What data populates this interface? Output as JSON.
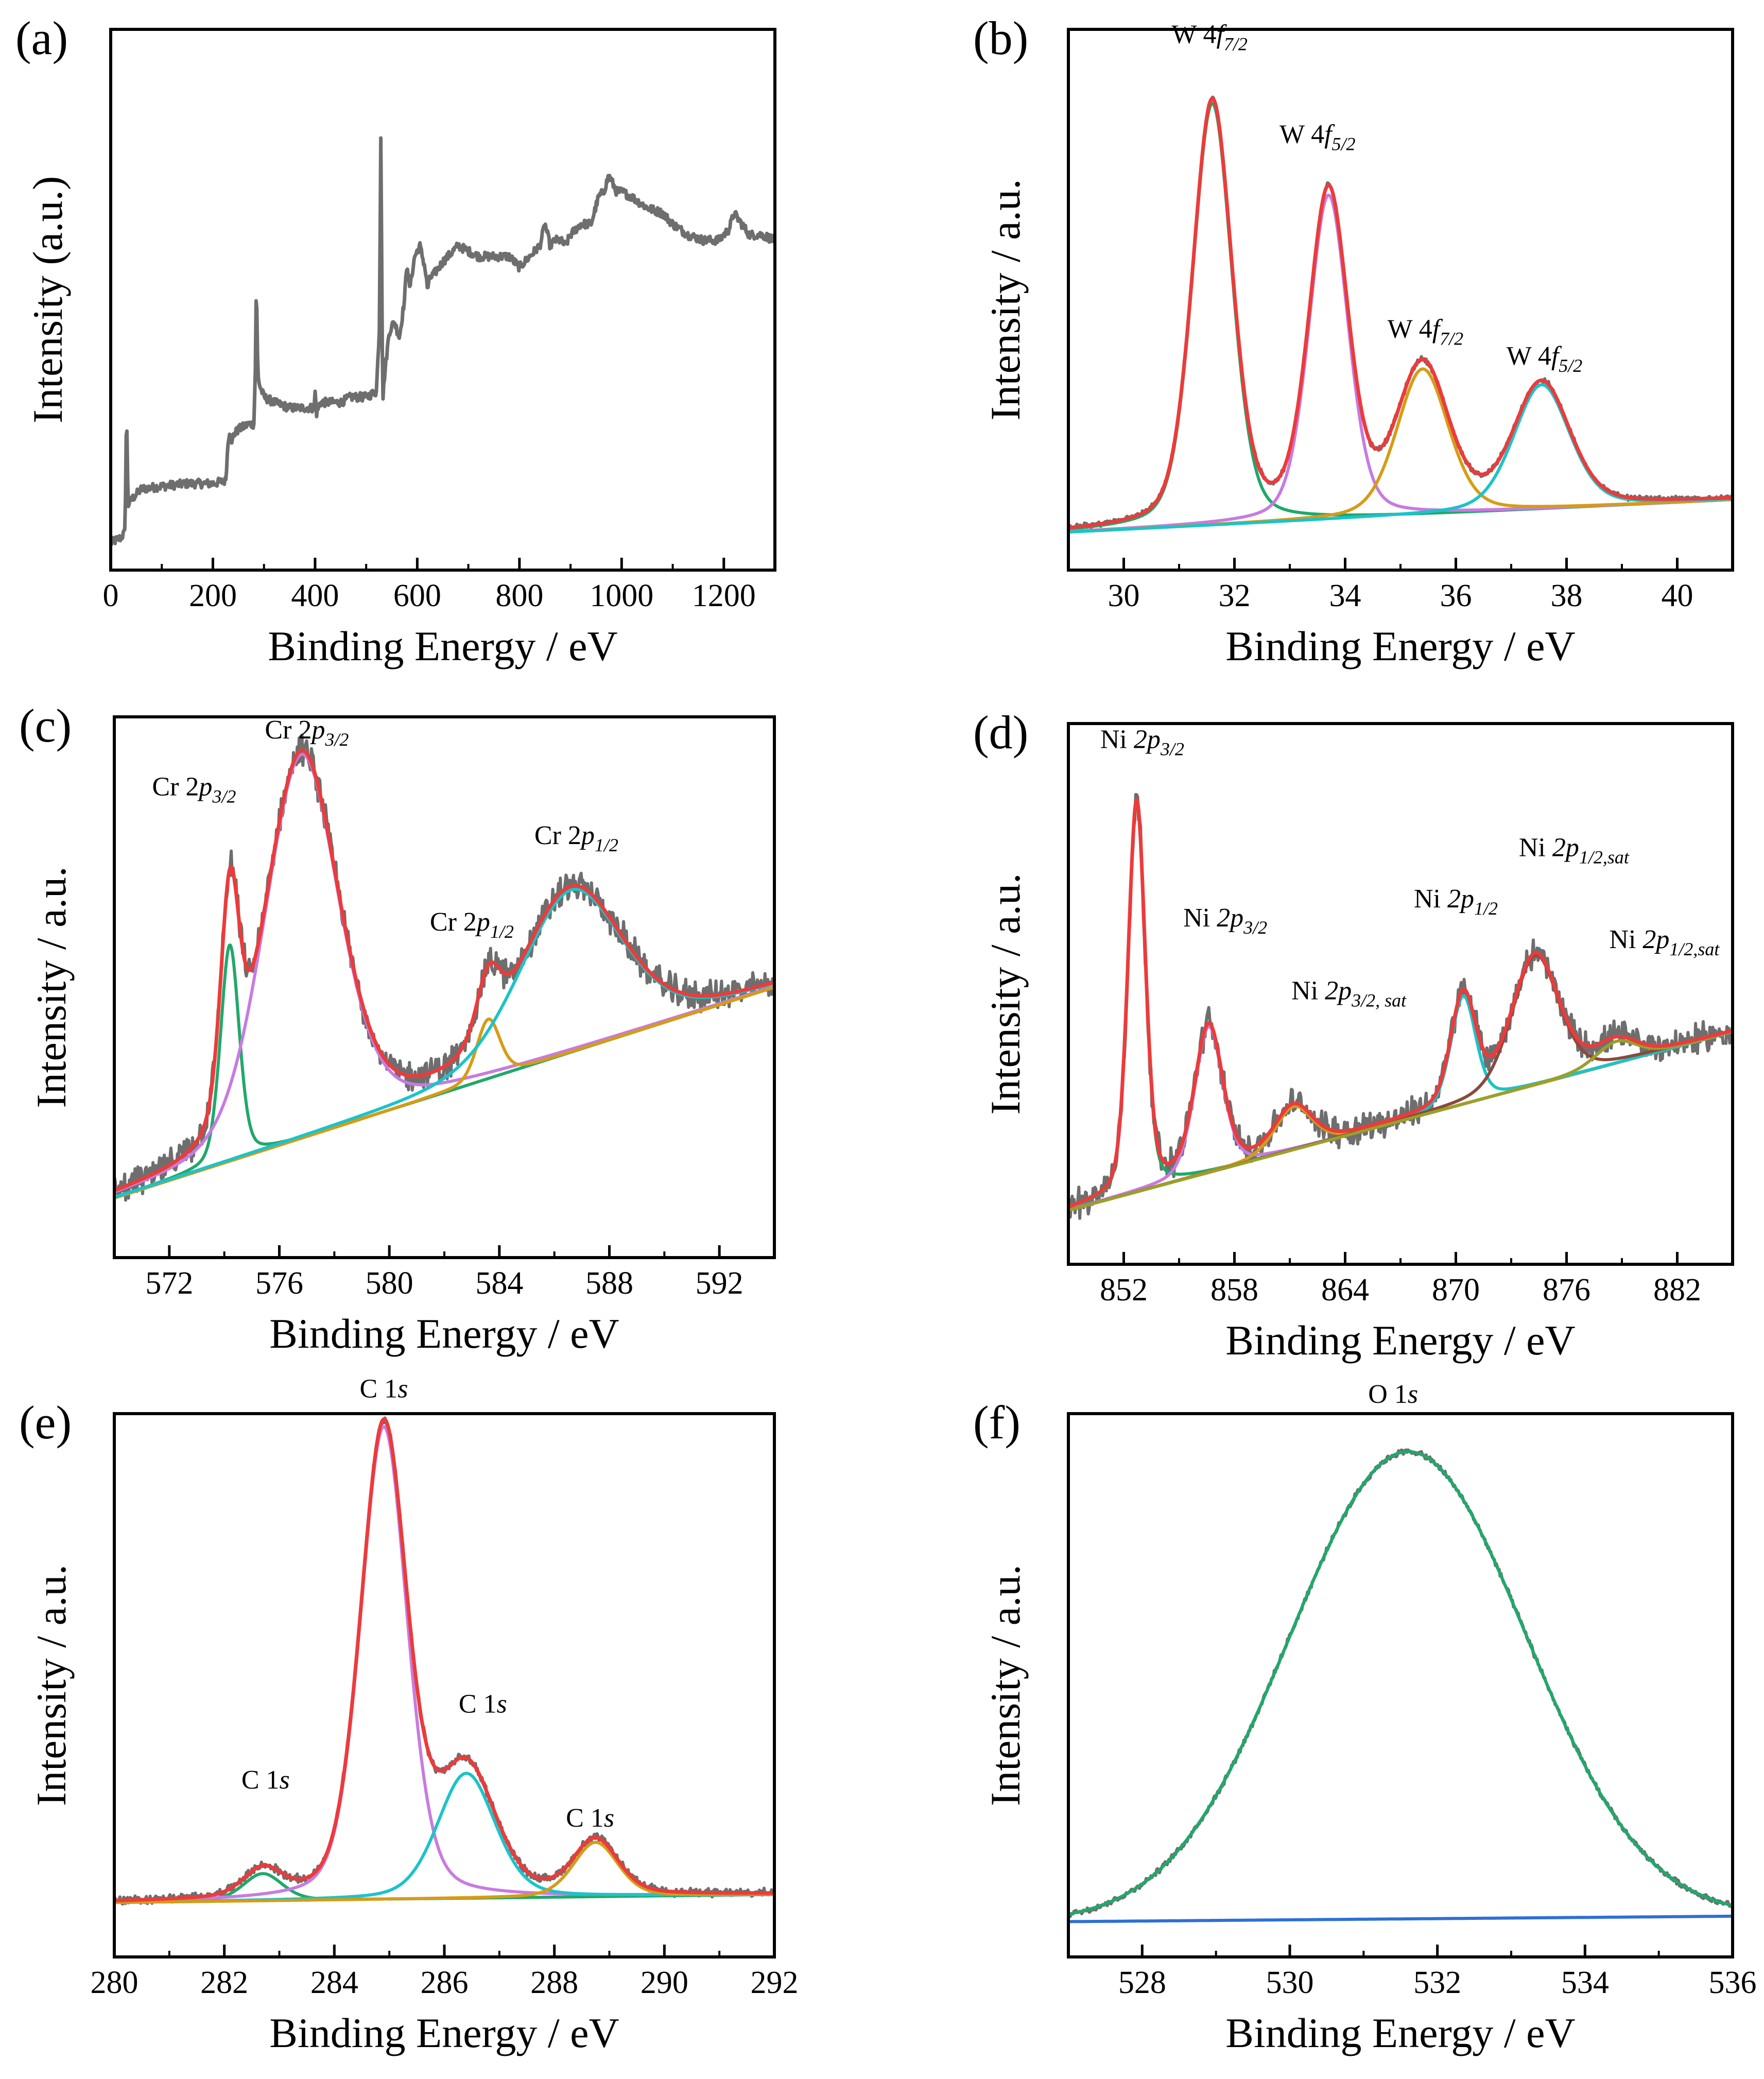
{
  "colors": {
    "raw": "#6e6e6e",
    "envelope": "#ec3b3b",
    "green": "#21a86b",
    "violet": "#c77be0",
    "orange": "#d69c16",
    "cyan": "#1cc3c9",
    "brown": "#8b4a3c",
    "olive": "#9aa02a",
    "blue": "#2d6fd6",
    "axis": "#000000"
  },
  "chart_data": [
    {
      "panel": "(a)",
      "type": "line",
      "title": "",
      "xlabel": "Binding Energy / eV",
      "ylabel": "Intensity (a.u.)",
      "xlim": [
        0,
        1300
      ],
      "ylim": [
        0,
        1
      ],
      "xticks": [
        0,
        200,
        400,
        600,
        800,
        1000,
        1200
      ],
      "xticklabels": [
        "0",
        "200",
        "400",
        "600",
        "800",
        "1000",
        "1200"
      ],
      "minor_step": 100,
      "series": [
        {
          "name": "survey",
          "color_key": "raw",
          "width": 7,
          "noise": 0.008,
          "x": [
            0,
            20,
            28,
            31,
            34,
            40,
            60,
            100,
            150,
            200,
            225,
            230,
            233,
            237,
            240,
            250,
            270,
            280,
            283,
            285,
            288,
            292,
            300,
            320,
            350,
            380,
            398,
            400,
            403,
            410,
            430,
            450,
            470,
            500,
            520,
            526,
            529,
            531,
            533,
            536,
            545,
            555,
            565,
            575,
            580,
            585,
            595,
            605,
            615,
            620,
            625,
            635,
            650,
            680,
            700,
            720,
            740,
            760,
            780,
            800,
            820,
            840,
            850,
            860,
            870,
            880,
            890,
            900,
            920,
            940,
            955,
            965,
            975,
            980,
            990,
            1000,
            1020,
            1050,
            1080,
            1100,
            1130,
            1160,
            1190,
            1210,
            1220,
            1235,
            1250,
            1275,
            1300
          ],
          "y": [
            0.05,
            0.06,
            0.07,
            0.3,
            0.12,
            0.13,
            0.15,
            0.155,
            0.16,
            0.16,
            0.165,
            0.24,
            0.26,
            0.23,
            0.25,
            0.26,
            0.27,
            0.27,
            0.36,
            0.54,
            0.36,
            0.34,
            0.32,
            0.31,
            0.3,
            0.3,
            0.3,
            0.33,
            0.29,
            0.31,
            0.31,
            0.31,
            0.32,
            0.32,
            0.33,
            0.45,
            0.85,
            0.45,
            0.32,
            0.36,
            0.44,
            0.46,
            0.43,
            0.5,
            0.57,
            0.52,
            0.58,
            0.6,
            0.56,
            0.52,
            0.54,
            0.55,
            0.57,
            0.6,
            0.59,
            0.58,
            0.58,
            0.58,
            0.58,
            0.56,
            0.58,
            0.6,
            0.64,
            0.6,
            0.61,
            0.61,
            0.6,
            0.62,
            0.64,
            0.64,
            0.69,
            0.7,
            0.73,
            0.72,
            0.7,
            0.7,
            0.69,
            0.67,
            0.66,
            0.64,
            0.62,
            0.61,
            0.61,
            0.63,
            0.66,
            0.64,
            0.62,
            0.62,
            0.61
          ]
        }
      ],
      "annotations": []
    },
    {
      "panel": "(b)",
      "type": "line",
      "title": "",
      "xlabel": "Binding Energy / eV",
      "ylabel": "Intensity / a.u.",
      "xlim": [
        29,
        41
      ],
      "ylim": [
        0,
        1
      ],
      "xticks": [
        30,
        32,
        34,
        36,
        38,
        40
      ],
      "xticklabels": [
        "30",
        "32",
        "34",
        "36",
        "38",
        "40"
      ],
      "minor_step": 1,
      "baseline": {
        "start": [
          29,
          0.07
        ],
        "end": [
          41,
          0.13
        ]
      },
      "peaks": [
        {
          "name": "W 4f7/2",
          "center": 31.6,
          "height": 0.78,
          "width": 0.42,
          "color_key": "green"
        },
        {
          "name": "W 4f5/2",
          "center": 33.7,
          "height": 0.6,
          "width": 0.42,
          "color_key": "violet"
        },
        {
          "name": "W 4f7/2",
          "center": 35.4,
          "height": 0.27,
          "width": 0.55,
          "color_key": "orange"
        },
        {
          "name": "W 4f5/2",
          "center": 37.55,
          "height": 0.23,
          "width": 0.6,
          "color_key": "cyan"
        }
      ],
      "noise": 0.004,
      "annotations": [
        {
          "x": 31.55,
          "y": 0.975,
          "parts": [
            [
              "W 4",
              ""
            ],
            [
              "f",
              "it"
            ],
            [
              "7/2",
              "sub"
            ]
          ]
        },
        {
          "x": 33.5,
          "y": 0.79,
          "parts": [
            [
              "W 4",
              ""
            ],
            [
              "f",
              "it"
            ],
            [
              "5/2",
              "sub"
            ]
          ]
        },
        {
          "x": 35.45,
          "y": 0.43,
          "parts": [
            [
              "W 4",
              ""
            ],
            [
              "f",
              "it"
            ],
            [
              "7/2",
              "sub"
            ]
          ]
        },
        {
          "x": 37.6,
          "y": 0.38,
          "parts": [
            [
              "W 4",
              ""
            ],
            [
              "f",
              "it"
            ],
            [
              "5/2",
              "sub"
            ]
          ]
        }
      ]
    },
    {
      "panel": "(c)",
      "type": "line",
      "title": "",
      "xlabel": "Binding Energy / eV",
      "ylabel": "Intensity / a.u.",
      "xlim": [
        570,
        594
      ],
      "ylim": [
        0,
        1
      ],
      "xticks": [
        572,
        576,
        580,
        584,
        588,
        592
      ],
      "xticklabels": [
        "572",
        "576",
        "580",
        "584",
        "588",
        "592"
      ],
      "minor_step": 2,
      "baseline": {
        "start": [
          570,
          0.11
        ],
        "end": [
          594,
          0.5
        ]
      },
      "peaks": [
        {
          "name": "Cr 2p3/2",
          "center": 574.2,
          "height": 0.4,
          "width": 0.4,
          "color_key": "green"
        },
        {
          "name": "Cr 2p3/2",
          "center": 576.8,
          "height": 0.71,
          "width": 1.6,
          "color_key": "violet"
        },
        {
          "name": "Cr 2p1/2",
          "center": 583.6,
          "height": 0.11,
          "width": 0.5,
          "color_key": "orange"
        },
        {
          "name": "Cr 2p1/2",
          "center": 586.6,
          "height": 0.3,
          "width": 2.2,
          "color_key": "cyan"
        }
      ],
      "noise": 0.022,
      "annotations": [
        {
          "x": 572.9,
          "y": 0.855,
          "parts": [
            [
              "Cr 2",
              ""
            ],
            [
              "p",
              "it"
            ],
            [
              "3/2",
              "sub"
            ]
          ]
        },
        {
          "x": 577.0,
          "y": 0.96,
          "parts": [
            [
              "Cr 2",
              ""
            ],
            [
              "p",
              "it"
            ],
            [
              "3/2",
              "sub"
            ]
          ]
        },
        {
          "x": 583.0,
          "y": 0.605,
          "parts": [
            [
              "Cr 2",
              ""
            ],
            [
              "p",
              "it"
            ],
            [
              "1/2",
              "sub"
            ]
          ]
        },
        {
          "x": 586.8,
          "y": 0.765,
          "parts": [
            [
              "Cr 2",
              ""
            ],
            [
              "p",
              "it"
            ],
            [
              "1/2",
              "sub"
            ]
          ]
        }
      ]
    },
    {
      "panel": "(d)",
      "type": "line",
      "title": "",
      "xlabel": "Binding Energy / eV",
      "ylabel": "Intensity / a.u.",
      "xlim": [
        849,
        885
      ],
      "ylim": [
        0,
        1
      ],
      "xticks": [
        852,
        858,
        864,
        870,
        876,
        882
      ],
      "xticklabels": [
        "852",
        "858",
        "864",
        "870",
        "876",
        "882"
      ],
      "minor_step": 3,
      "baseline": {
        "start": [
          849,
          0.1
        ],
        "end": [
          885,
          0.43
        ]
      },
      "peaks": [
        {
          "name": "Ni 2p3/2",
          "center": 852.7,
          "height": 0.72,
          "width": 0.55,
          "color_key": "green"
        },
        {
          "name": "Ni 2p3/2",
          "center": 856.6,
          "height": 0.27,
          "width": 0.9,
          "color_key": "violet"
        },
        {
          "name": "Ni 2p3/2, sat",
          "center": 861.2,
          "height": 0.08,
          "width": 1.2,
          "color_key": "orange"
        },
        {
          "name": "Ni 2p1/2",
          "center": 870.4,
          "height": 0.2,
          "width": 0.8,
          "color_key": "cyan"
        },
        {
          "name": "Ni 2p1/2,sat",
          "center": 874.3,
          "height": 0.24,
          "width": 1.5,
          "color_key": "brown"
        },
        {
          "name": "Ni 2p1/2,sat",
          "center": 878.7,
          "height": 0.04,
          "width": 1.3,
          "color_key": "olive"
        }
      ],
      "noise": 0.022,
      "annotations": [
        {
          "x": 853.0,
          "y": 0.955,
          "parts": [
            [
              "Ni ",
              ""
            ],
            [
              "2p",
              "it"
            ],
            [
              "3/2",
              "sub"
            ]
          ]
        },
        {
          "x": 857.5,
          "y": 0.625,
          "parts": [
            [
              "Ni ",
              ""
            ],
            [
              "2p",
              "it"
            ],
            [
              "3/2",
              "sub"
            ]
          ]
        },
        {
          "x": 864.2,
          "y": 0.49,
          "parts": [
            [
              "Ni ",
              ""
            ],
            [
              "2p",
              "it"
            ],
            [
              "3/2, sat",
              "sub"
            ]
          ]
        },
        {
          "x": 870.0,
          "y": 0.66,
          "parts": [
            [
              "Ni ",
              ""
            ],
            [
              "2p",
              "it"
            ],
            [
              "1/2",
              "sub"
            ]
          ]
        },
        {
          "x": 876.4,
          "y": 0.755,
          "parts": [
            [
              "Ni ",
              ""
            ],
            [
              "2p",
              "it"
            ],
            [
              "1/2,sat",
              "sub"
            ]
          ]
        },
        {
          "x": 881.3,
          "y": 0.585,
          "parts": [
            [
              "Ni ",
              ""
            ],
            [
              "2p",
              "it"
            ],
            [
              "1/2,sat",
              "sub"
            ]
          ]
        }
      ]
    },
    {
      "panel": "(e)",
      "type": "line",
      "title": "",
      "xlabel": "Binding Energy / eV",
      "ylabel": "Intensity / a.u.",
      "xlim": [
        280,
        292
      ],
      "ylim": [
        0,
        1
      ],
      "xticks": [
        280,
        282,
        284,
        286,
        288,
        290,
        292
      ],
      "xticklabels": [
        "280",
        "282",
        "284",
        "286",
        "288",
        "290",
        "292"
      ],
      "minor_step": 1,
      "baseline": {
        "start": [
          280,
          0.1
        ],
        "end": [
          292,
          0.115
        ]
      },
      "peaks": [
        {
          "name": "C 1s",
          "center": 282.7,
          "height": 0.05,
          "width": 0.42,
          "color_key": "green"
        },
        {
          "name": "C 1s",
          "center": 284.9,
          "height": 0.87,
          "width": 0.5,
          "color_key": "violet"
        },
        {
          "name": "C 1s",
          "center": 286.4,
          "height": 0.23,
          "width": 0.62,
          "color_key": "cyan"
        },
        {
          "name": "C 1s",
          "center": 288.75,
          "height": 0.1,
          "width": 0.48,
          "color_key": "orange"
        }
      ],
      "noise": 0.006,
      "annotations": [
        {
          "x": 282.75,
          "y": 0.31,
          "parts": [
            [
              "C 1",
              ""
            ],
            [
              "s",
              "it"
            ]
          ]
        },
        {
          "x": 284.9,
          "y": 1.03,
          "parts": [
            [
              "C 1",
              ""
            ],
            [
              "s",
              "it"
            ]
          ]
        },
        {
          "x": 286.7,
          "y": 0.45,
          "parts": [
            [
              "C 1",
              ""
            ],
            [
              "s",
              "it"
            ]
          ]
        },
        {
          "x": 288.65,
          "y": 0.24,
          "parts": [
            [
              "C 1",
              ""
            ],
            [
              "s",
              "it"
            ]
          ]
        }
      ]
    },
    {
      "panel": "(f)",
      "type": "line",
      "title": "",
      "xlabel": "Binding Energy / eV",
      "ylabel": "Intensity / a.u.",
      "xlim": [
        527,
        536
      ],
      "ylim": [
        0,
        1
      ],
      "xticks": [
        528,
        530,
        532,
        534,
        536
      ],
      "xticklabels": [
        "528",
        "530",
        "532",
        "534",
        "536"
      ],
      "minor_step": 1,
      "baseline": {
        "start": [
          527,
          0.065
        ],
        "end": [
          536,
          0.075
        ],
        "color_key": "blue"
      },
      "peaks": [
        {
          "name": "O 1s",
          "center": 531.6,
          "height": 0.86,
          "width": 1.6,
          "color_key": "green",
          "shape": "gaussian"
        }
      ],
      "noise": 0.004,
      "annotations": [
        {
          "x": 531.4,
          "y": 1.02,
          "parts": [
            [
              "O 1",
              ""
            ],
            [
              "s",
              "it"
            ]
          ]
        }
      ]
    }
  ]
}
